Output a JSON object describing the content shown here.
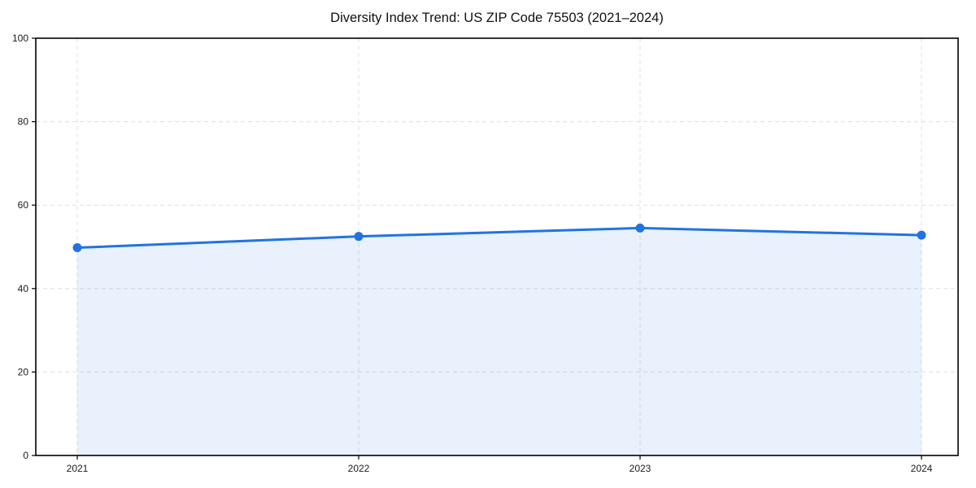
{
  "chart_data": {
    "type": "line",
    "title": "Diversity Index Trend: US ZIP Code 75503 (2021–2024)",
    "x": [
      "2021",
      "2022",
      "2023",
      "2024"
    ],
    "series": [
      {
        "name": "Diversity Index",
        "values": [
          49.8,
          52.5,
          54.5,
          52.8
        ]
      }
    ],
    "xlabel": "",
    "ylabel": "",
    "ylim": [
      0,
      100
    ],
    "yticks": [
      0,
      20,
      40,
      60,
      80,
      100
    ],
    "grid": "dashed",
    "legend_position": "none",
    "area_fill": true,
    "colors": {
      "line": "#2273e0",
      "marker": "#2273e0",
      "fill": "rgba(34,115,224,0.10)",
      "grid": "#dfdfdf",
      "axis": "#000000",
      "tick_text": "#1a1a1a",
      "title_text": "#111111",
      "background": "#ffffff"
    }
  }
}
